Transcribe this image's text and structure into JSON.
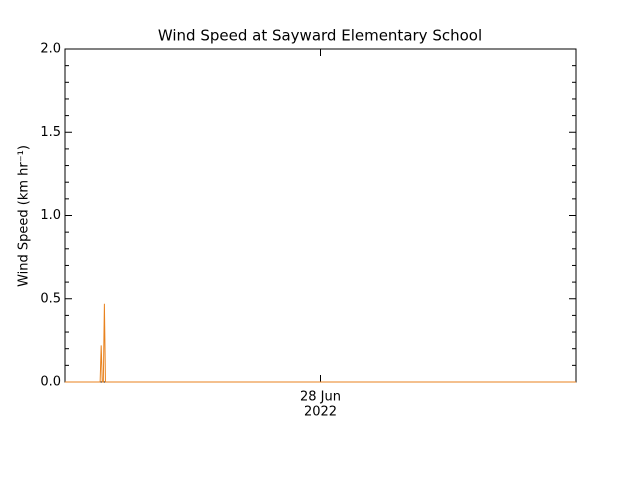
{
  "chart_data": {
    "type": "line",
    "title": "Wind Speed at Sayward Elementary School",
    "y_label": "Wind Speed (km hr⁻¹)",
    "x": [
      -12,
      -10.35,
      -10.3,
      -10.25,
      -10.2,
      -10.15,
      -10.1,
      12
    ],
    "series": [
      {
        "name": "Wind Speed",
        "color": "#e8821e",
        "values": [
          0,
          0,
          0.22,
          0,
          0,
          0.47,
          0,
          0
        ]
      }
    ],
    "xlim": [
      -12,
      12
    ],
    "xticks": [
      {
        "value": 0,
        "label": "28 Jun"
      }
    ],
    "xtick_year": "2022",
    "ylim": [
      0,
      2
    ],
    "yticks": [
      {
        "value": 0,
        "label": "0.0"
      },
      {
        "value": 0.5,
        "label": "0.5"
      },
      {
        "value": 1,
        "label": "1.0"
      },
      {
        "value": 1.5,
        "label": "1.5"
      },
      {
        "value": 2,
        "label": "2.0"
      }
    ],
    "yminor": 5
  }
}
